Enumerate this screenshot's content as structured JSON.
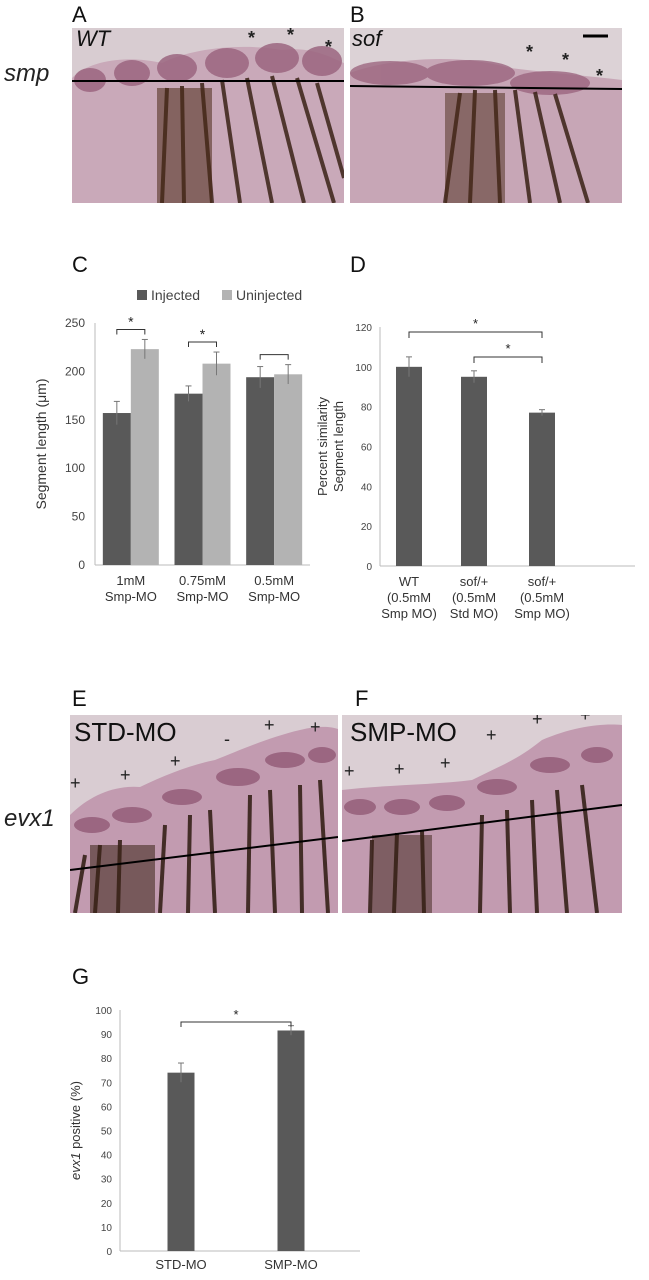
{
  "panels": {
    "A": {
      "letter": "A",
      "genotype": "WT",
      "marks": [
        "*",
        "*",
        "*"
      ]
    },
    "B": {
      "letter": "B",
      "genotype": "sof",
      "marks": [
        "*",
        "*",
        "*"
      ]
    },
    "row1_label": "smp",
    "C": {
      "letter": "C"
    },
    "D": {
      "letter": "D"
    },
    "E": {
      "letter": "E",
      "condition": "STD-MO",
      "marks": [
        "+",
        "+",
        "+",
        "-",
        "+",
        "+"
      ]
    },
    "F": {
      "letter": "F",
      "condition": "SMP-MO",
      "marks": [
        "+",
        "+",
        "+",
        "+",
        "+",
        "+"
      ]
    },
    "row3_label": "evx1",
    "G": {
      "letter": "G"
    }
  },
  "colors": {
    "dark_bar": "#595959",
    "light_bar": "#b3b3b3",
    "tissue": "#b793a6",
    "pigment": "#3a2216"
  },
  "chart_data": [
    {
      "id": "C",
      "type": "bar",
      "categories": [
        [
          "1mM",
          "Smp-MO"
        ],
        [
          "0.75mM",
          "Smp-MO"
        ],
        [
          "0.5mM",
          "Smp-MO"
        ]
      ],
      "series": [
        {
          "name": "Injected",
          "values": [
            157,
            177,
            194
          ],
          "errors": [
            12,
            8,
            11
          ],
          "color": "#595959"
        },
        {
          "name": "Uninjected",
          "values": [
            223,
            208,
            197
          ],
          "errors": [
            10,
            12,
            10
          ],
          "color": "#b3b3b3"
        }
      ],
      "ylabel_main": "Segment length (",
      "ylabel_unit": "μm",
      "ylabel_close": ")",
      "ylim": [
        0,
        250
      ],
      "yticks": [
        0,
        50,
        100,
        150,
        200,
        250
      ],
      "legend": "top",
      "significance": [
        "*",
        "*",
        ""
      ]
    },
    {
      "id": "D",
      "type": "bar",
      "categories": [
        [
          "WT",
          "(0.5mM",
          "Smp MO)"
        ],
        [
          "sof/+",
          "(0.5mM",
          "Std MO)"
        ],
        [
          "sof/+",
          "(0.5mM",
          "Smp MO)"
        ]
      ],
      "series": [
        {
          "values": [
            100,
            95,
            77
          ],
          "errors": [
            5,
            3,
            1.5
          ],
          "color": "#595959"
        }
      ],
      "ylabel_lines": [
        "Percent similarity",
        "Segment length"
      ],
      "ylim": [
        0,
        120
      ],
      "yticks": [
        0,
        20,
        40,
        60,
        80,
        100,
        120
      ],
      "significance": [
        "*",
        "*"
      ]
    },
    {
      "id": "G",
      "type": "bar",
      "categories": [
        "STD-MO",
        "SMP-MO"
      ],
      "series": [
        {
          "values": [
            74,
            91.5
          ],
          "errors": [
            4,
            2
          ],
          "color": "#595959"
        }
      ],
      "ylabel_ital": "evx1",
      "ylabel_rest": " positive (%)",
      "ylim": [
        0,
        100
      ],
      "yticks": [
        0,
        10,
        20,
        30,
        40,
        50,
        60,
        70,
        80,
        90,
        100
      ],
      "significance": [
        "*"
      ]
    }
  ]
}
